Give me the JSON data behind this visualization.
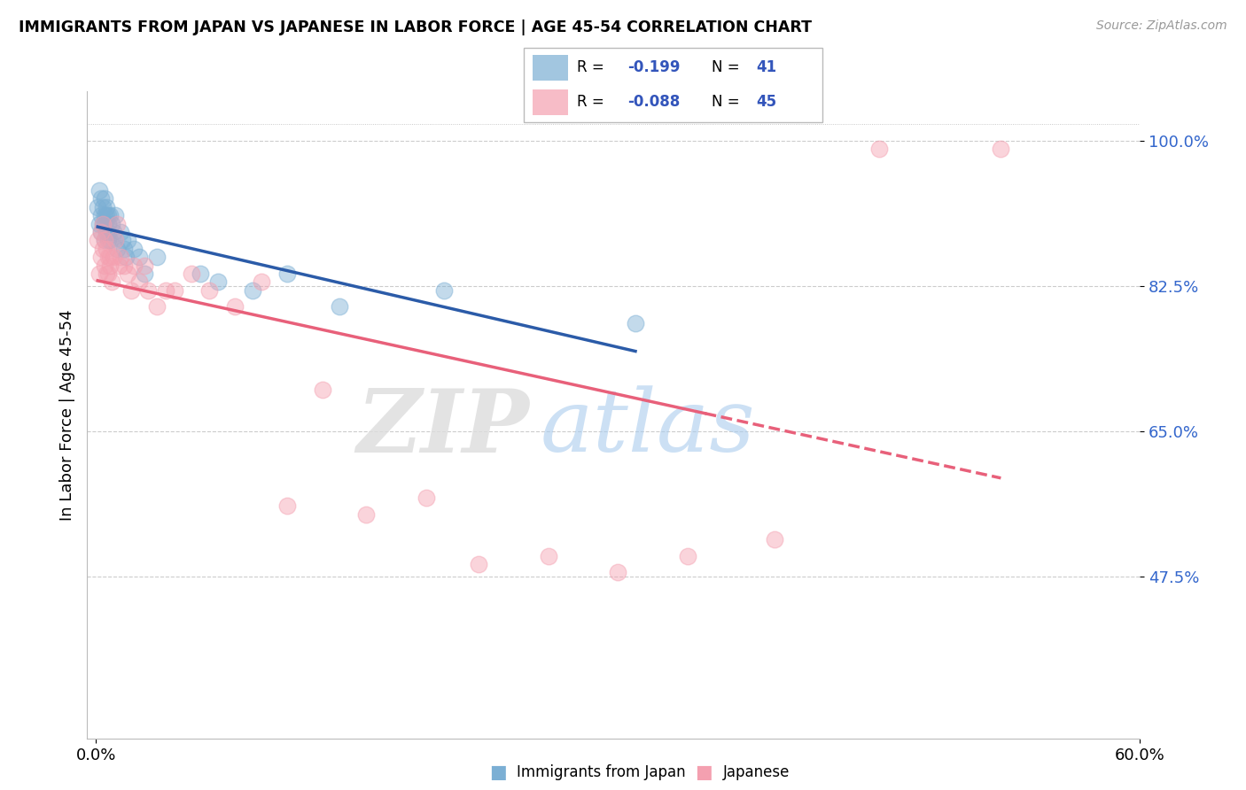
{
  "title": "IMMIGRANTS FROM JAPAN VS JAPANESE IN LABOR FORCE | AGE 45-54 CORRELATION CHART",
  "source": "Source: ZipAtlas.com",
  "xlabel_blue": "Immigrants from Japan",
  "xlabel_pink": "Japanese",
  "ylabel": "In Labor Force | Age 45-54",
  "xlim": [
    -0.005,
    0.6
  ],
  "ylim": [
    0.28,
    1.06
  ],
  "yticks": [
    0.475,
    0.65,
    0.825,
    1.0
  ],
  "ytick_labels": [
    "47.5%",
    "65.0%",
    "82.5%",
    "100.0%"
  ],
  "xticks": [
    0.0,
    0.6
  ],
  "xtick_labels": [
    "0.0%",
    "60.0%"
  ],
  "blue_R": -0.199,
  "blue_N": 41,
  "pink_R": -0.088,
  "pink_N": 45,
  "blue_color": "#7BAFD4",
  "pink_color": "#F4A0B0",
  "blue_line_color": "#2B5BA8",
  "pink_line_color": "#E8607A",
  "blue_x": [
    0.001,
    0.002,
    0.002,
    0.003,
    0.003,
    0.003,
    0.004,
    0.004,
    0.005,
    0.005,
    0.005,
    0.005,
    0.006,
    0.006,
    0.006,
    0.007,
    0.007,
    0.007,
    0.007,
    0.008,
    0.008,
    0.009,
    0.01,
    0.011,
    0.012,
    0.014,
    0.015,
    0.016,
    0.017,
    0.018,
    0.022,
    0.025,
    0.028,
    0.035,
    0.06,
    0.07,
    0.09,
    0.11,
    0.14,
    0.2,
    0.31
  ],
  "blue_y": [
    0.92,
    0.94,
    0.9,
    0.91,
    0.89,
    0.93,
    0.9,
    0.92,
    0.91,
    0.93,
    0.9,
    0.88,
    0.91,
    0.89,
    0.92,
    0.9,
    0.88,
    0.91,
    0.89,
    0.91,
    0.88,
    0.9,
    0.89,
    0.91,
    0.87,
    0.89,
    0.88,
    0.87,
    0.86,
    0.88,
    0.87,
    0.86,
    0.84,
    0.86,
    0.84,
    0.83,
    0.82,
    0.84,
    0.8,
    0.82,
    0.78
  ],
  "pink_x": [
    0.001,
    0.002,
    0.003,
    0.003,
    0.004,
    0.004,
    0.005,
    0.005,
    0.006,
    0.006,
    0.007,
    0.007,
    0.008,
    0.008,
    0.009,
    0.01,
    0.011,
    0.012,
    0.013,
    0.014,
    0.016,
    0.018,
    0.02,
    0.022,
    0.025,
    0.028,
    0.03,
    0.035,
    0.04,
    0.045,
    0.055,
    0.065,
    0.08,
    0.095,
    0.11,
    0.13,
    0.155,
    0.19,
    0.22,
    0.26,
    0.3,
    0.34,
    0.39,
    0.45,
    0.52
  ],
  "pink_y": [
    0.88,
    0.84,
    0.86,
    0.89,
    0.87,
    0.9,
    0.85,
    0.88,
    0.84,
    0.87,
    0.86,
    0.84,
    0.86,
    0.85,
    0.83,
    0.86,
    0.88,
    0.9,
    0.85,
    0.86,
    0.85,
    0.84,
    0.82,
    0.85,
    0.83,
    0.85,
    0.82,
    0.8,
    0.82,
    0.82,
    0.84,
    0.82,
    0.8,
    0.83,
    0.56,
    0.7,
    0.55,
    0.57,
    0.49,
    0.5,
    0.48,
    0.5,
    0.52,
    0.99,
    0.99
  ]
}
